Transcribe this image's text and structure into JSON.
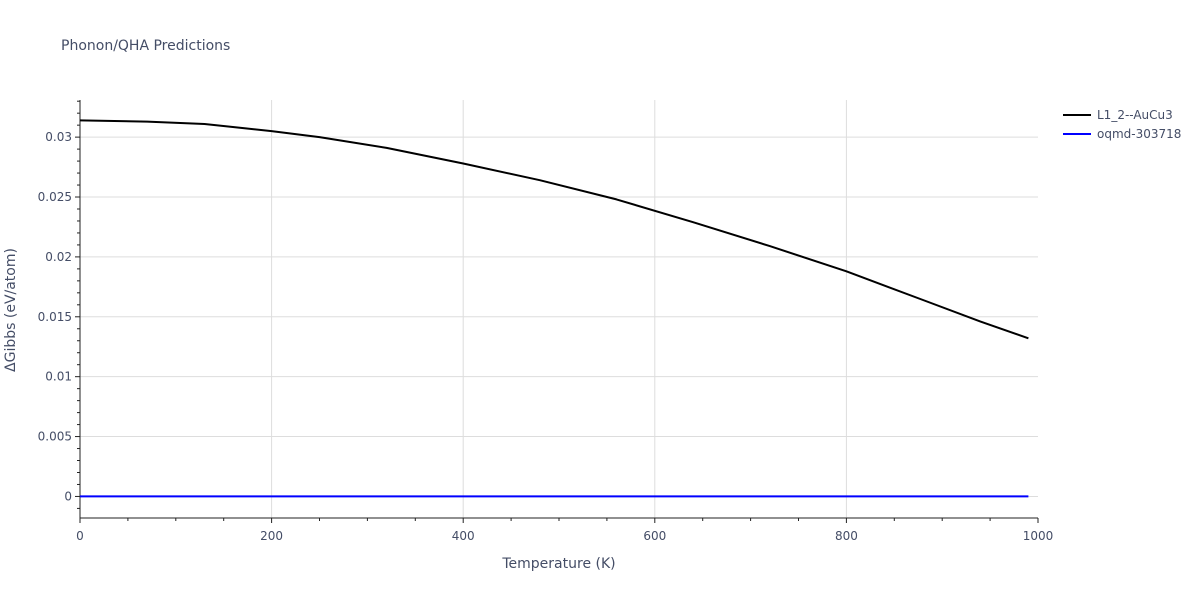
{
  "chart_data": {
    "type": "line",
    "title": "Phonon/QHA Predictions",
    "xlabel": "Temperature (K)",
    "ylabel": "ΔGibbs (eV/atom)",
    "xlim": [
      0,
      1000
    ],
    "ylim": [
      -0.0018,
      0.0331
    ],
    "x_ticks": [
      0,
      200,
      400,
      600,
      800,
      1000
    ],
    "x_tick_labels": [
      "0",
      "200",
      "400",
      "600",
      "800",
      "1000"
    ],
    "y_ticks": [
      0,
      0.005,
      0.01,
      0.015,
      0.02,
      0.025,
      0.03
    ],
    "y_tick_labels": [
      "0",
      "0.005",
      "0.01",
      "0.015",
      "0.02",
      "0.025",
      "0.03"
    ],
    "grid": true,
    "legend_position": "top-right",
    "series": [
      {
        "name": "L1_2--AuCu3",
        "color": "#000000",
        "x": [
          0,
          70,
          130,
          200,
          250,
          320,
          400,
          480,
          560,
          640,
          720,
          800,
          880,
          940,
          990
        ],
        "y": [
          0.0314,
          0.0313,
          0.0311,
          0.0305,
          0.03,
          0.0291,
          0.0278,
          0.0264,
          0.0248,
          0.0229,
          0.0209,
          0.0188,
          0.0164,
          0.0146,
          0.0132
        ]
      },
      {
        "name": "oqmd-303718",
        "color": "#0000ff",
        "x": [
          0,
          990
        ],
        "y": [
          0,
          0
        ]
      }
    ]
  }
}
